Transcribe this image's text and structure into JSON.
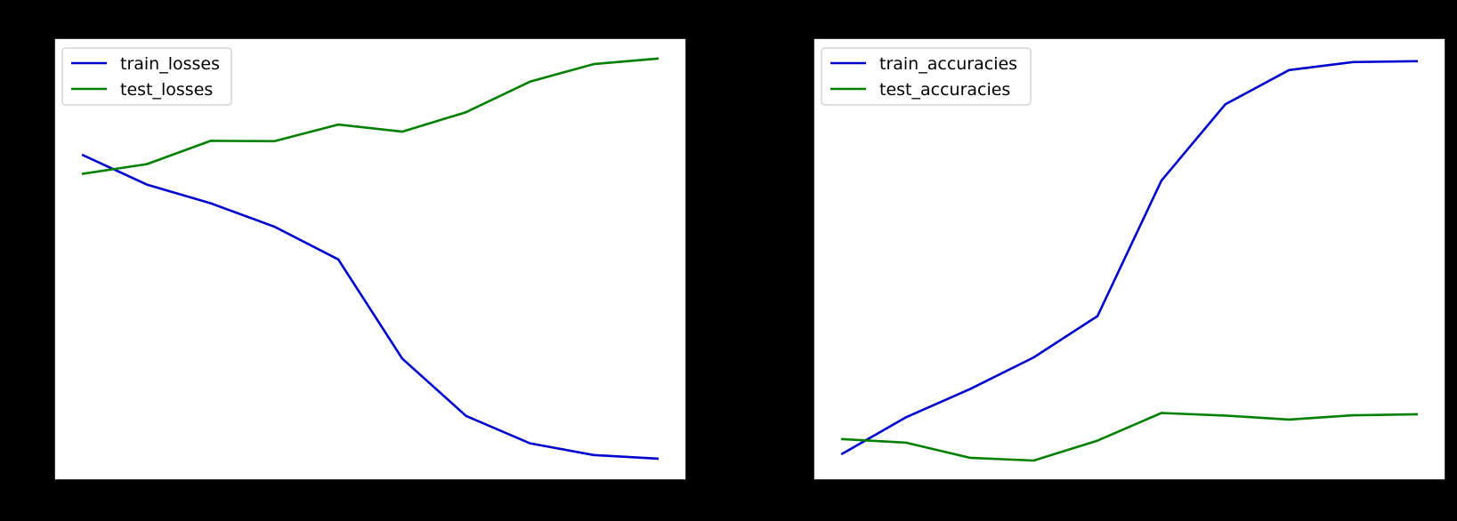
{
  "colors": {
    "background": "#000000",
    "plot_area": "#ffffff",
    "train": "#0000cc",
    "test": "#007f00"
  },
  "chart_data": [
    {
      "type": "line",
      "x": [
        1,
        2,
        3,
        4,
        5,
        6,
        7,
        8,
        9,
        10
      ],
      "series": [
        {
          "name": "train_losses",
          "color": "#0000cc",
          "values": [
            0.8553,
            0.7937,
            0.7545,
            0.7055,
            0.637,
            0.4294,
            0.3093,
            0.252,
            0.2274,
            0.2198
          ]
        },
        {
          "name": "test_losses",
          "color": "#007f00",
          "values": [
            0.8163,
            0.8365,
            0.8853,
            0.8845,
            0.9192,
            0.9044,
            0.9452,
            1.0089,
            1.0459,
            1.0573
          ]
        }
      ],
      "xlim": [
        0.55,
        10.45
      ],
      "ylim": [
        0.175,
        1.1
      ],
      "legend": "top-left",
      "grid": false,
      "title": "",
      "xlabel": "",
      "ylabel": ""
    },
    {
      "type": "line",
      "x": [
        1,
        2,
        3,
        4,
        5,
        6,
        7,
        8,
        9,
        10
      ],
      "series": [
        {
          "name": "train_accuracies",
          "color": "#0000cc",
          "values": [
            0.531,
            0.574,
            0.607,
            0.6444,
            0.693,
            0.8524,
            0.9422,
            0.9825,
            0.992,
            0.993
          ]
        },
        {
          "name": "test_accuracies",
          "color": "#007f00",
          "values": [
            0.5482,
            0.544,
            0.5263,
            0.523,
            0.5465,
            0.579,
            0.576,
            0.5713,
            0.5763,
            0.5774
          ]
        }
      ],
      "xlim": [
        0.55,
        10.45
      ],
      "ylim": [
        0.5,
        1.02
      ],
      "legend": "top-left",
      "grid": false,
      "title": "",
      "xlabel": "",
      "ylabel": ""
    }
  ]
}
